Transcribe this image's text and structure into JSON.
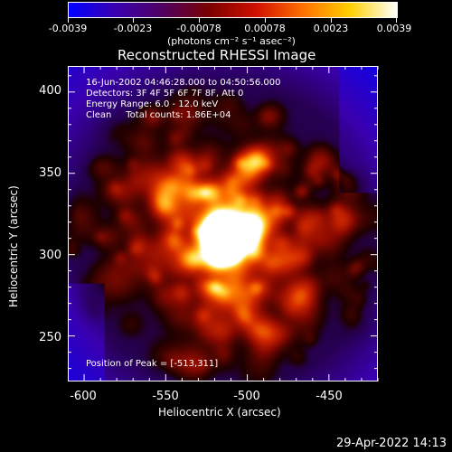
{
  "colorbar": {
    "tick_labels": [
      "-0.0039",
      "-0.0023",
      "-0.00078",
      "0.00078",
      "0.0023",
      "0.0039"
    ],
    "units": "(photons cm⁻² s⁻¹ asec⁻²)",
    "colors": [
      "#0000ff",
      "#3a00b0",
      "#500060",
      "#7a0000",
      "#d01000",
      "#ff7000",
      "#ffd000",
      "#ffffff"
    ]
  },
  "image": {
    "title": "Reconstructed RHESSI Image",
    "annotations": {
      "time": "16-Jun-2002 04:46:28.000 to 04:50:56.000",
      "detectors": "Detectors: 3F 4F 5F 6F 7F 8F, Att 0",
      "energy": "Energy Range: 6.0 - 12.0 keV",
      "method": "Clean     Total counts: 1.86E+04",
      "peak": "Position of Peak = [-513,311]"
    },
    "peak": {
      "x": -513,
      "y": 311
    }
  },
  "axes": {
    "xlabel": "Heliocentric X (arcsec)",
    "ylabel": "Heliocentric Y (arcsec)",
    "xticks": [
      "-600",
      "-550",
      "-500",
      "-450"
    ],
    "yticks": [
      "400",
      "350",
      "300",
      "250"
    ],
    "xrange": [
      -610,
      -420
    ],
    "yrange": [
      222,
      416
    ]
  },
  "footer": {
    "timestamp": "29-Apr-2022 14:13"
  }
}
